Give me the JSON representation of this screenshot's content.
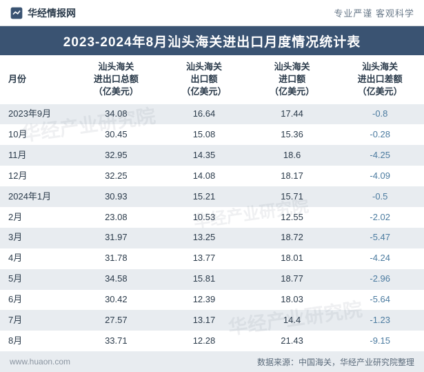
{
  "header": {
    "logo_text": "华经情报网",
    "right_text": "专业严谨   客观科学"
  },
  "title": "2023-2024年8月汕头海关进出口月度情况统计表",
  "table": {
    "columns": [
      "月份",
      "汕头海关\n进出口总额\n（亿美元）",
      "汕头海关\n出口额\n（亿美元）",
      "汕头海关\n进口额\n（亿美元）",
      "汕头海关\n进出口差额\n（亿美元）"
    ],
    "rows": [
      [
        "2023年9月",
        "34.08",
        "16.64",
        "17.44",
        "-0.8"
      ],
      [
        "10月",
        "30.45",
        "15.08",
        "15.36",
        "-0.28"
      ],
      [
        "11月",
        "32.95",
        "14.35",
        "18.6",
        "-4.25"
      ],
      [
        "12月",
        "32.25",
        "14.08",
        "18.17",
        "-4.09"
      ],
      [
        "2024年1月",
        "30.93",
        "15.21",
        "15.71",
        "-0.5"
      ],
      [
        "2月",
        "23.08",
        "10.53",
        "12.55",
        "-2.02"
      ],
      [
        "3月",
        "31.97",
        "13.25",
        "18.72",
        "-5.47"
      ],
      [
        "4月",
        "31.78",
        "13.77",
        "18.01",
        "-4.24"
      ],
      [
        "5月",
        "34.58",
        "15.81",
        "18.77",
        "-2.96"
      ],
      [
        "6月",
        "30.42",
        "12.39",
        "18.03",
        "-5.64"
      ],
      [
        "7月",
        "27.57",
        "13.17",
        "14.4",
        "-1.23"
      ],
      [
        "8月",
        "33.71",
        "12.28",
        "21.43",
        "-9.15"
      ]
    ]
  },
  "footer": {
    "left": "www.huaon.com",
    "right": "数据来源：中国海关，华经产业研究院整理"
  },
  "watermark": "华经产业研究院",
  "colors": {
    "title_bg": "#3a5372",
    "stripe": "#e8ecf0",
    "diff": "#4a7a9f"
  }
}
